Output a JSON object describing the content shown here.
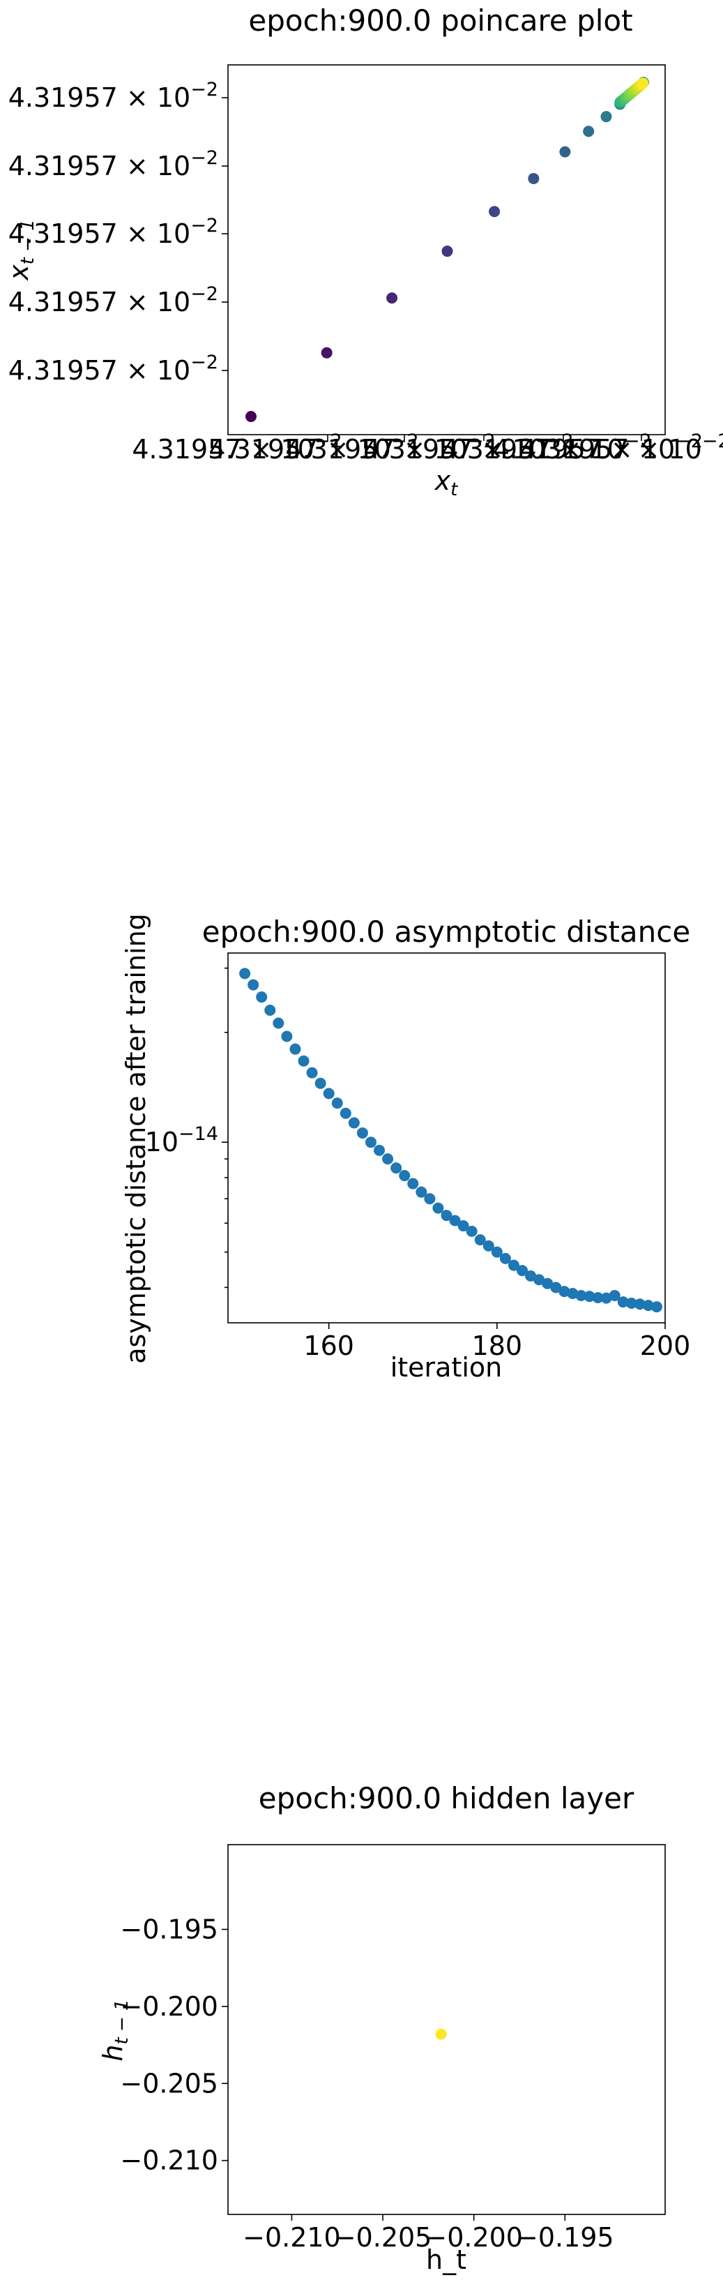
{
  "chart_data": [
    {
      "type": "scatter",
      "title": "epoch:900.0 poincare plot",
      "xlabel": "x_t",
      "ylabel": "x_{t-1}",
      "x_tick_labels": [
        "4.31957 × 10^{-2}",
        "4.31957 × 10^{-2}",
        "4.31957 × 10^{-2}",
        "4.31957 × 10^{-2}",
        "4.31957 × 10^{-2}",
        "4.31957 × 10^{-2}",
        "4.31957 × 10^{-2}"
      ],
      "y_tick_labels": [
        "4.31957 × 10^{-2}",
        "4.31957 × 10^{-2}",
        "4.31957 × 10^{-2}",
        "4.31957 × 10^{-2}",
        "4.31957 × 10^{-2}"
      ],
      "colormap": "viridis",
      "points_fraction": [
        [
          0.0,
          0.0
        ],
        [
          0.193,
          0.143
        ],
        [
          0.359,
          0.266
        ],
        [
          0.5,
          0.371
        ],
        [
          0.62,
          0.46
        ],
        [
          0.72,
          0.534
        ],
        [
          0.8,
          0.594
        ],
        [
          0.86,
          0.64
        ],
        [
          0.905,
          0.673
        ],
        [
          0.94,
          0.701
        ],
        [
          0.965,
          0.724
        ],
        [
          0.985,
          0.738
        ],
        [
          1.0,
          0.75
        ]
      ]
    },
    {
      "type": "scatter",
      "title": "epoch:900.0 asymptotic distance",
      "xlabel": "iteration",
      "ylabel": "asymptotic distance after training",
      "yscale": "log",
      "xlim": [
        148,
        200
      ],
      "ylim": [
        3.2e-15,
        3.3e-14
      ],
      "x_ticks": [
        160,
        180,
        200
      ],
      "y_ticks": [
        {
          "value": 1e-14,
          "label": "10^{-14}"
        }
      ],
      "color": "#1f77b4",
      "x": [
        150,
        151,
        152,
        153,
        154,
        155,
        156,
        157,
        158,
        159,
        160,
        161,
        162,
        163,
        164,
        165,
        166,
        167,
        168,
        169,
        170,
        171,
        172,
        173,
        174,
        175,
        176,
        177,
        178,
        179,
        180,
        181,
        182,
        183,
        184,
        185,
        186,
        187,
        188,
        189,
        190,
        191,
        192,
        193,
        194,
        195,
        196,
        197,
        198,
        199
      ],
      "y": [
        2.9e-14,
        2.7e-14,
        2.5e-14,
        2.3e-14,
        2.12e-14,
        1.95e-14,
        1.8e-14,
        1.67e-14,
        1.55e-14,
        1.45e-14,
        1.36e-14,
        1.28e-14,
        1.2e-14,
        1.13e-14,
        1.06e-14,
        1e-14,
        9.5e-15,
        9e-15,
        8.5e-15,
        8.1e-15,
        7.7e-15,
        7.3e-15,
        7e-15,
        6.6e-15,
        6.3e-15,
        6.1e-15,
        5.9e-15,
        5.7e-15,
        5.4e-15,
        5.2e-15,
        5e-15,
        4.8e-15,
        4.6e-15,
        4.45e-15,
        4.3e-15,
        4.2e-15,
        4.1e-15,
        4e-15,
        3.9e-15,
        3.85e-15,
        3.8e-15,
        3.78e-15,
        3.75e-15,
        3.74e-15,
        3.8e-15,
        3.65e-15,
        3.62e-15,
        3.6e-15,
        3.57e-15,
        3.54e-15
      ]
    },
    {
      "type": "scatter",
      "title": "epoch:900.0 hidden layer",
      "xlabel": "h_t",
      "ylabel": "h_{t-1}",
      "xlim": [
        -0.2135,
        -0.1895
      ],
      "ylim": [
        -0.2135,
        -0.1895
      ],
      "x_ticks": [
        {
          "value": -0.21,
          "label": "−0.210"
        },
        {
          "value": -0.205,
          "label": "−0.205"
        },
        {
          "value": -0.2,
          "label": "−0.200"
        },
        {
          "value": -0.195,
          "label": "−0.195"
        }
      ],
      "y_ticks": [
        {
          "value": -0.195,
          "label": "−0.195"
        },
        {
          "value": -0.2,
          "label": "−0.200"
        },
        {
          "value": -0.205,
          "label": "−0.205"
        },
        {
          "value": -0.21,
          "label": "−0.210"
        }
      ],
      "color": "#fde725",
      "points": [
        [
          -0.2018,
          -0.2018
        ]
      ]
    }
  ]
}
